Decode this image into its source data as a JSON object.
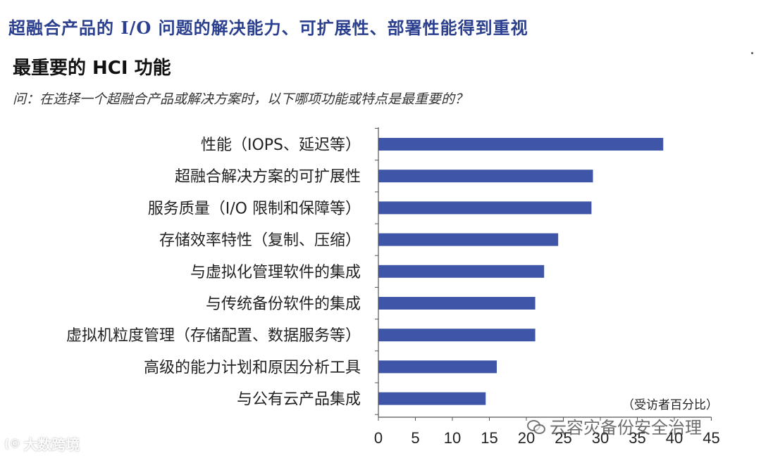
{
  "header": {
    "headline": "超融合产品的 I/O 问题的解决能力、可扩展性、部署性能得到重视"
  },
  "chart_data": {
    "type": "bar",
    "orientation": "horizontal",
    "title": "最重要的 HCI 功能",
    "subtitle": "问：在选择一个超融合产品或解决方案时，以下哪项功能或特点是最重要的？",
    "unit_label": "（受访者百分比）",
    "categories": [
      "性能（IOPS、延迟等）",
      "超融合解决方案的可扩展性",
      "服务质量（I/O 限制和保障等）",
      "存储效率特性（复制、压缩）",
      "与虚拟化管理软件的集成",
      "与传统备份软件的集成",
      "虚拟机粒度管理（存储配置、数据服务等）",
      "高级的能力计划和原因分析工具",
      "与公有云产品集成"
    ],
    "values": [
      38.5,
      29,
      28.8,
      24.3,
      22.4,
      21.2,
      21.2,
      16,
      14.5
    ],
    "xlim": [
      0,
      45
    ],
    "xticks": [
      0,
      5,
      10,
      15,
      20,
      25,
      30,
      35,
      40,
      45
    ],
    "bar_color": "#3f55a8",
    "grid": false
  },
  "watermarks": {
    "right": "云容灾备份安全治理",
    "left": "大数跨境",
    "left_icon": "(©"
  }
}
